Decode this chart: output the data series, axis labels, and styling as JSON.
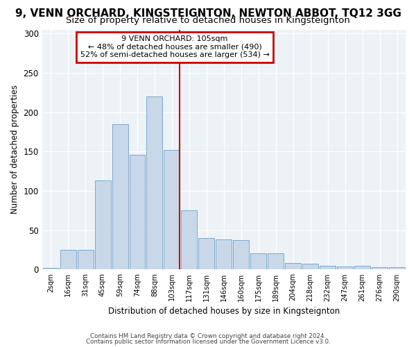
{
  "title": "9, VENN ORCHARD, KINGSTEIGNTON, NEWTON ABBOT, TQ12 3GG",
  "subtitle": "Size of property relative to detached houses in Kingsteignton",
  "xlabel": "Distribution of detached houses by size in Kingsteignton",
  "ylabel": "Number of detached properties",
  "categories": [
    "2sqm",
    "16sqm",
    "31sqm",
    "45sqm",
    "59sqm",
    "74sqm",
    "88sqm",
    "103sqm",
    "117sqm",
    "131sqm",
    "146sqm",
    "160sqm",
    "175sqm",
    "189sqm",
    "204sqm",
    "218sqm",
    "232sqm",
    "247sqm",
    "261sqm",
    "276sqm",
    "290sqm"
  ],
  "values": [
    2,
    25,
    25,
    113,
    185,
    146,
    220,
    152,
    75,
    40,
    38,
    37,
    21,
    21,
    8,
    7,
    5,
    4,
    5,
    3,
    3
  ],
  "bar_color": "#c8d8e8",
  "bar_edge_color": "#7baacf",
  "vline_color": "#cc0000",
  "annotation_title": "9 VENN ORCHARD: 105sqm",
  "annotation_line1": "← 48% of detached houses are smaller (490)",
  "annotation_line2": "52% of semi-detached houses are larger (534) →",
  "annotation_box_color": "#cc0000",
  "background_color": "#edf2f7",
  "ylim": [
    0,
    305
  ],
  "yticks": [
    0,
    50,
    100,
    150,
    200,
    250,
    300
  ],
  "footer1": "Contains HM Land Registry data © Crown copyright and database right 2024.",
  "footer2": "Contains public sector information licensed under the Government Licence v3.0.",
  "title_fontsize": 11,
  "subtitle_fontsize": 9.5
}
